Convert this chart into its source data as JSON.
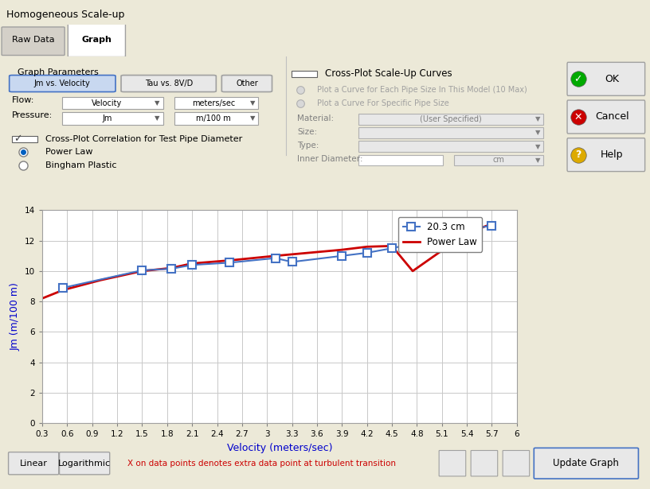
{
  "dialog_title": "Homogeneous Scale-up",
  "xlabel": "Velocity (meters/sec)",
  "ylabel": "Jm (m/100 m)",
  "xlim": [
    0.3,
    6.0
  ],
  "ylim": [
    0,
    14
  ],
  "xtick_values": [
    0.3,
    0.6,
    0.9,
    1.2,
    1.5,
    1.8,
    2.1,
    2.4,
    2.7,
    3.0,
    3.3,
    3.6,
    3.9,
    4.2,
    4.5,
    4.8,
    5.1,
    5.4,
    5.7,
    6.0
  ],
  "ytick_values": [
    0,
    2,
    4,
    6,
    8,
    10,
    12,
    14
  ],
  "model_x": [
    0.55,
    1.5,
    1.85,
    2.1,
    2.55,
    3.1,
    3.3,
    3.9,
    4.2,
    4.5,
    4.8,
    5.1,
    5.4,
    5.7
  ],
  "model_y": [
    8.9,
    10.05,
    10.15,
    10.4,
    10.55,
    10.85,
    10.6,
    11.0,
    11.2,
    11.5,
    11.85,
    12.05,
    12.7,
    13.0
  ],
  "power_law_x": [
    0.3,
    0.55,
    1.0,
    1.5,
    1.85,
    2.1,
    2.55,
    3.1,
    3.3,
    3.9,
    4.2,
    4.5,
    4.75,
    5.4,
    5.7
  ],
  "power_law_y": [
    8.2,
    8.75,
    9.4,
    10.0,
    10.2,
    10.5,
    10.7,
    11.0,
    11.1,
    11.4,
    11.6,
    11.65,
    10.0,
    12.5,
    13.1
  ],
  "extra_point_x": 4.75,
  "extra_point_y": 13.05,
  "model_color": "#4472C4",
  "power_law_color": "#CC0000",
  "dialog_bg": "#ECE9D8",
  "panel_bg": "#F0F0F0",
  "plot_bg": "#FFFFFF",
  "grid_color": "#C8C8C8",
  "legend_model_label": "20.3 cm",
  "legend_power_label": "Power Law",
  "tab_active": "Graph",
  "bottom_note": "X on data points denotes extra data point at turbulent transition",
  "figsize": [
    8.16,
    6.15
  ],
  "dpi": 100
}
